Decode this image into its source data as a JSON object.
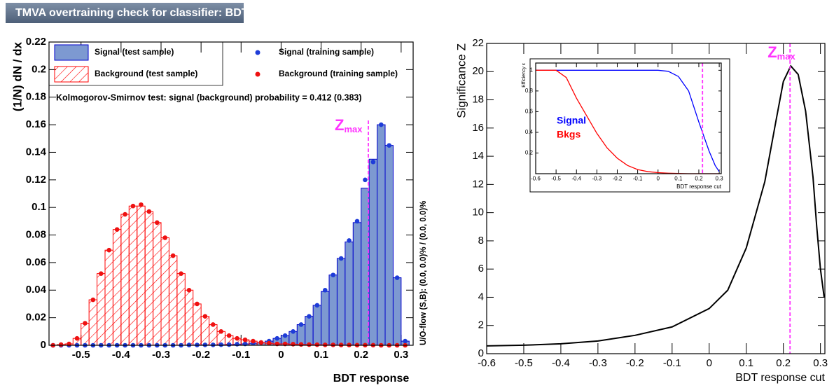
{
  "header": {
    "title": "TMVA overtraining check for classifier: BDT"
  },
  "chart_data": [
    {
      "type": "histogram",
      "ylabel": "(1/N) dN / dx",
      "xlabel": "BDT response",
      "bins": [
        -0.58,
        -0.56,
        -0.54,
        -0.52,
        -0.5,
        -0.48,
        -0.46,
        -0.44,
        -0.42,
        -0.4,
        -0.38,
        -0.36,
        -0.34,
        -0.32,
        -0.3,
        -0.28,
        -0.26,
        -0.24,
        -0.22,
        -0.2,
        -0.18,
        -0.16,
        -0.14,
        -0.12,
        -0.1,
        -0.08,
        -0.06,
        -0.04,
        -0.02,
        0,
        0.02,
        0.04,
        0.06,
        0.08,
        0.1,
        0.12,
        0.14,
        0.16,
        0.18,
        0.2,
        0.22,
        0.24,
        0.26,
        0.28,
        0.3,
        0.32
      ],
      "xlim": [
        -0.58,
        0.33
      ],
      "ylim": [
        0,
        0.22
      ],
      "xticks": [
        -0.5,
        -0.4,
        -0.3,
        -0.2,
        -0.1,
        0,
        0.1,
        0.2,
        0.3
      ],
      "yticks": [
        0,
        0.02,
        0.04,
        0.06,
        0.08,
        0.1,
        0.12,
        0.14,
        0.16,
        0.18,
        0.2,
        0.22
      ],
      "grid": false,
      "series": [
        {
          "name": "Signal (test sample)",
          "style": "fill",
          "color": "#7d99d1",
          "line_color": "#0000cc",
          "values": [
            0,
            0,
            0,
            0,
            0,
            0,
            0,
            0,
            0,
            0,
            0,
            0,
            0,
            0,
            0,
            0,
            0,
            0.0002,
            0.0002,
            0.0003,
            0.0003,
            0.0004,
            0.0005,
            0.0007,
            0.001,
            0.0015,
            0.002,
            0.003,
            0.005,
            0.007,
            0.01,
            0.015,
            0.021,
            0.029,
            0.039,
            0.051,
            0.063,
            0.075,
            0.089,
            0.114,
            0.135,
            0.16,
            0.145,
            0.049,
            0.003
          ]
        },
        {
          "name": "Background (test sample)",
          "style": "hatch",
          "color": "#ff0000",
          "line_color": "#ff0000",
          "values": [
            0,
            0.0005,
            0.001,
            0.005,
            0.016,
            0.033,
            0.052,
            0.069,
            0.084,
            0.095,
            0.101,
            0.101,
            0.097,
            0.089,
            0.078,
            0.065,
            0.052,
            0.04,
            0.03,
            0.021,
            0.015,
            0.01,
            0.007,
            0.005,
            0.004,
            0.003,
            0.002,
            0.0015,
            0.001,
            0.001,
            0.0008,
            0.0006,
            0.0005,
            0.0004,
            0.0003,
            0.0003,
            0.0002,
            0.0002,
            0.0001,
            0.0001,
            0.0001,
            0,
            0,
            0,
            0
          ]
        },
        {
          "name": "Signal (training sample)",
          "style": "points",
          "color": "#1e3cd8",
          "values": [
            0,
            0,
            0,
            0,
            0,
            0,
            0,
            0,
            0,
            0,
            0,
            0,
            0,
            0,
            0,
            0,
            0,
            0.0002,
            0.0002,
            0.0003,
            0.0003,
            0.0004,
            0.0005,
            0.0008,
            0.001,
            0.0015,
            0.002,
            0.003,
            0.005,
            0.007,
            0.01,
            0.015,
            0.021,
            0.029,
            0.04,
            0.051,
            0.063,
            0.076,
            0.09,
            0.12,
            0.133,
            0.16,
            0.145,
            0.049,
            0.003
          ]
        },
        {
          "name": "Background (training sample)",
          "style": "points",
          "color": "#ee1111",
          "values": [
            0,
            0.0005,
            0.001,
            0.005,
            0.016,
            0.033,
            0.052,
            0.069,
            0.084,
            0.095,
            0.101,
            0.102,
            0.097,
            0.089,
            0.078,
            0.065,
            0.052,
            0.04,
            0.03,
            0.021,
            0.015,
            0.01,
            0.007,
            0.005,
            0.004,
            0.003,
            0.002,
            0.0015,
            0.001,
            0.001,
            0.0008,
            0.0006,
            0.0005,
            0.0004,
            0.0003,
            0.0003,
            0.0002,
            0.0002,
            0.0001,
            0.0001,
            0.0001,
            0,
            0,
            0,
            0
          ]
        }
      ],
      "annotation": "Kolmogorov-Smirnov test: signal (background) probability = 0.412 (0.383)",
      "side_note": "U/O-flow (S,B): (0.0, 0.0)% / (0.0, 0.0)%",
      "marker": {
        "x": 0.218,
        "label": "Z",
        "subscript": "max",
        "color": "#ff33ff"
      }
    },
    {
      "type": "line",
      "ylabel": "Significance Z",
      "xlabel": "BDT response cut",
      "x": [
        -0.6,
        -0.5,
        -0.4,
        -0.3,
        -0.2,
        -0.1,
        0,
        0.05,
        0.1,
        0.15,
        0.18,
        0.2,
        0.22,
        0.24,
        0.26,
        0.28,
        0.29,
        0.3,
        0.31
      ],
      "series": [
        {
          "color": "#000000",
          "values": [
            0.55,
            0.6,
            0.7,
            0.9,
            1.3,
            1.9,
            3.2,
            4.5,
            7.5,
            12.2,
            16.5,
            19.3,
            20.4,
            19.8,
            17.2,
            12.5,
            9,
            6,
            4
          ]
        }
      ],
      "xlim": [
        -0.6,
        0.312
      ],
      "ylim": [
        0,
        22
      ],
      "xticks": [
        -0.6,
        -0.5,
        -0.4,
        -0.3,
        -0.2,
        -0.1,
        0,
        0.1,
        0.2,
        0.3
      ],
      "yticks": [
        0,
        2,
        4,
        6,
        8,
        10,
        12,
        14,
        16,
        18,
        20,
        22
      ],
      "grid": false,
      "marker": {
        "x": 0.218,
        "label": "Z",
        "subscript": "max",
        "color": "#ff33ff"
      }
    },
    {
      "type": "line",
      "ylabel": "Efficiency ε",
      "xlabel": "BDT response cut",
      "x": [
        -0.6,
        -0.55,
        -0.5,
        -0.45,
        -0.4,
        -0.35,
        -0.3,
        -0.25,
        -0.2,
        -0.15,
        -0.1,
        -0.05,
        0,
        0.05,
        0.1,
        0.15,
        0.2,
        0.25,
        0.28,
        0.3
      ],
      "series": [
        {
          "name": "Signal",
          "color": "#0000ff",
          "values": [
            1,
            1,
            1,
            1,
            1,
            1,
            1,
            1,
            1,
            1,
            1,
            1,
            1,
            0.99,
            0.94,
            0.8,
            0.5,
            0.22,
            0.08,
            0.02
          ]
        },
        {
          "name": "Bkgs",
          "color": "#ff0000",
          "values": [
            1,
            1,
            1,
            0.93,
            0.73,
            0.56,
            0.39,
            0.25,
            0.15,
            0.08,
            0.04,
            0.02,
            0.01,
            0.005,
            0.002,
            0,
            0,
            0,
            0,
            0
          ]
        }
      ],
      "xlim": [
        -0.6,
        0.31
      ],
      "ylim": [
        0,
        1.07
      ],
      "xticks": [
        -0.6,
        -0.5,
        -0.4,
        -0.3,
        -0.2,
        -0.1,
        0,
        0.1,
        0.2,
        0.3
      ],
      "yticks": [
        0.2,
        0.4,
        0.6,
        0.8,
        1
      ],
      "grid": false,
      "marker": {
        "x": 0.218,
        "color": "#ff33ff"
      }
    }
  ]
}
